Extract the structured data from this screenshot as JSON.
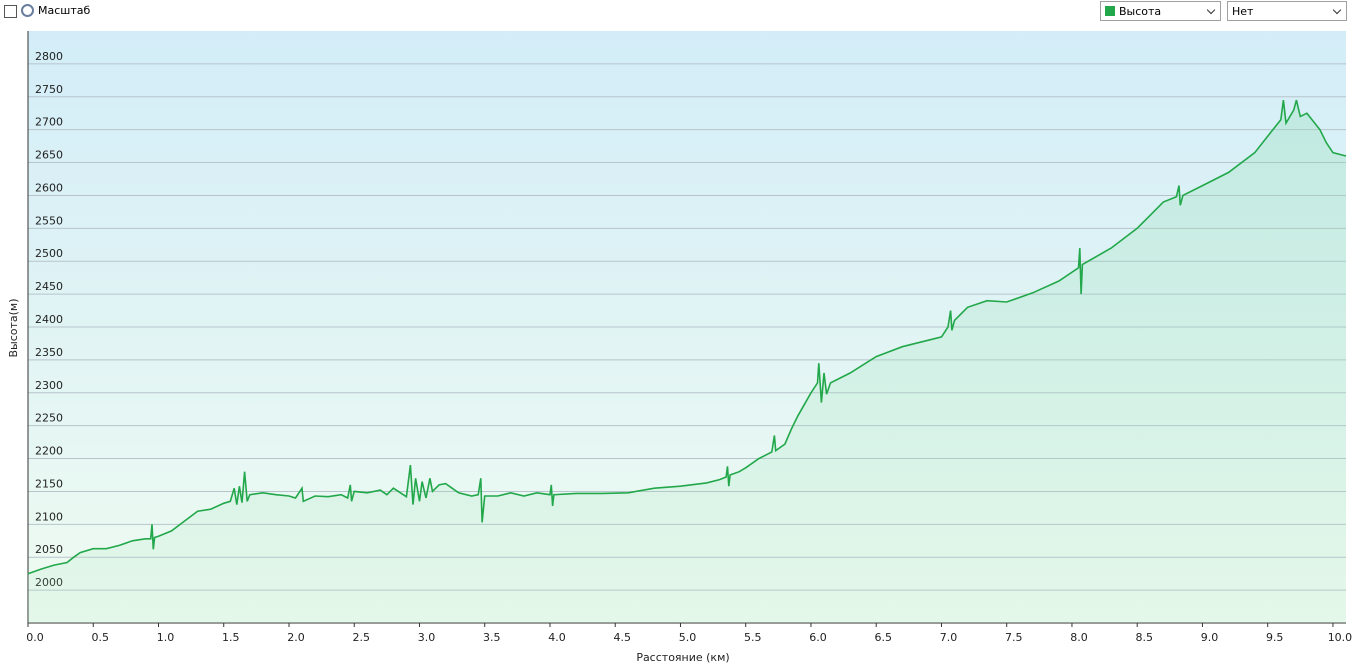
{
  "ui": {
    "zoom_label": "Масштаб",
    "second_select": "Нет"
  },
  "chart_data": {
    "type": "line",
    "x_label": "Расстояние  (км)",
    "y_label": "Высота(м)",
    "x": [
      0.0,
      0.1,
      0.2,
      0.3,
      0.35,
      0.4,
      0.5,
      0.6,
      0.7,
      0.8,
      0.9,
      0.94,
      0.95,
      0.96,
      0.97,
      1.0,
      1.1,
      1.2,
      1.3,
      1.4,
      1.5,
      1.55,
      1.58,
      1.6,
      1.62,
      1.64,
      1.66,
      1.68,
      1.7,
      1.8,
      1.9,
      2.0,
      2.05,
      2.1,
      2.11,
      2.2,
      2.3,
      2.4,
      2.45,
      2.47,
      2.48,
      2.5,
      2.6,
      2.7,
      2.75,
      2.8,
      2.9,
      2.93,
      2.95,
      2.97,
      3.0,
      3.02,
      3.05,
      3.08,
      3.1,
      3.15,
      3.2,
      3.25,
      3.3,
      3.4,
      3.45,
      3.47,
      3.48,
      3.5,
      3.6,
      3.7,
      3.8,
      3.9,
      4.0,
      4.01,
      4.02,
      4.03,
      4.2,
      4.4,
      4.6,
      4.8,
      5.0,
      5.2,
      5.3,
      5.35,
      5.36,
      5.37,
      5.38,
      5.45,
      5.5,
      5.6,
      5.7,
      5.72,
      5.73,
      5.8,
      5.85,
      5.9,
      6.0,
      6.05,
      6.06,
      6.08,
      6.1,
      6.12,
      6.15,
      6.3,
      6.5,
      6.7,
      6.9,
      7.0,
      7.05,
      7.07,
      7.08,
      7.1,
      7.2,
      7.35,
      7.5,
      7.7,
      7.9,
      8.05,
      8.06,
      8.07,
      8.08,
      8.3,
      8.5,
      8.7,
      8.8,
      8.82,
      8.83,
      8.85,
      9.0,
      9.2,
      9.4,
      9.5,
      9.6,
      9.62,
      9.64,
      9.7,
      9.72,
      9.75,
      9.8,
      9.9,
      9.95,
      10.0,
      10.1
    ],
    "series": [
      {
        "name": "Высота",
        "color": "#22a84a",
        "values": [
          2025,
          2032,
          2038,
          2042,
          2050,
          2057,
          2063,
          2063,
          2068,
          2075,
          2078,
          2078,
          2100,
          2062,
          2080,
          2082,
          2090,
          2105,
          2120,
          2123,
          2132,
          2135,
          2155,
          2130,
          2158,
          2133,
          2180,
          2135,
          2145,
          2148,
          2145,
          2143,
          2140,
          2155,
          2135,
          2143,
          2142,
          2145,
          2140,
          2160,
          2135,
          2150,
          2148,
          2152,
          2145,
          2155,
          2142,
          2190,
          2130,
          2170,
          2135,
          2165,
          2140,
          2170,
          2150,
          2160,
          2162,
          2155,
          2148,
          2143,
          2145,
          2170,
          2103,
          2143,
          2143,
          2148,
          2143,
          2148,
          2145,
          2160,
          2128,
          2145,
          2147,
          2147,
          2148,
          2155,
          2158,
          2163,
          2168,
          2172,
          2188,
          2158,
          2175,
          2180,
          2186,
          2200,
          2210,
          2235,
          2212,
          2222,
          2245,
          2265,
          2300,
          2315,
          2345,
          2285,
          2330,
          2298,
          2315,
          2330,
          2355,
          2370,
          2380,
          2385,
          2400,
          2425,
          2395,
          2410,
          2430,
          2440,
          2438,
          2452,
          2470,
          2490,
          2520,
          2450,
          2495,
          2520,
          2550,
          2590,
          2598,
          2615,
          2585,
          2600,
          2615,
          2635,
          2665,
          2690,
          2715,
          2745,
          2710,
          2730,
          2745,
          2720,
          2725,
          2700,
          2680,
          2665,
          2660
        ]
      }
    ],
    "xlim": [
      0,
      10.1
    ],
    "ylim": [
      1950,
      2850
    ],
    "xticks": [
      {
        "value": 0,
        "label": "0.0"
      },
      0.5,
      {
        "value": 1,
        "label": "1.0"
      },
      1.5,
      {
        "value": 2,
        "label": "2.0"
      },
      2.5,
      {
        "value": 3,
        "label": "3.0"
      },
      3.5,
      {
        "value": 4,
        "label": "4.0"
      },
      4.5,
      {
        "value": 5,
        "label": "5.0"
      },
      5.5,
      {
        "value": 6,
        "label": "6.0"
      },
      6.5,
      {
        "value": 7,
        "label": "7.0"
      },
      7.5,
      {
        "value": 8,
        "label": "8.0"
      },
      8.5,
      {
        "value": 9,
        "label": "9.0"
      },
      9.5,
      {
        "value": 10,
        "label": "10.0"
      }
    ],
    "yticks": [
      2000,
      2050,
      2100,
      2150,
      2200,
      2250,
      2300,
      2350,
      2400,
      2450,
      2500,
      2550,
      2600,
      2650,
      2700,
      2750,
      2800
    ],
    "grid": true
  }
}
